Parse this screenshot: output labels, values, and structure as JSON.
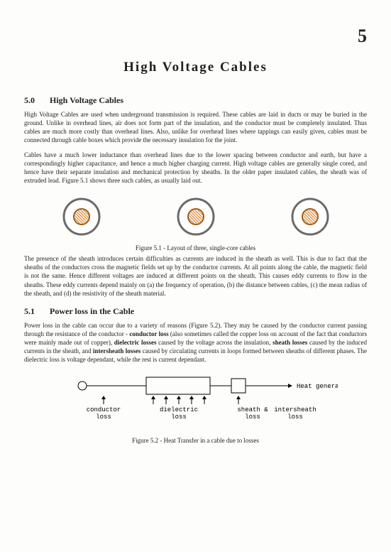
{
  "chapter_number": "5",
  "title": "High  Voltage  Cables",
  "sec0": {
    "num": "5.0",
    "head": "High Voltage Cables"
  },
  "p1": "High Voltage Cables are used when underground transmission is required.  These cables are laid in ducts or may be buried in the ground.  Unlike in overhead lines, air does not form part of the insulation, and the conductor must be completely insulated.  Thus cables are much more costly than overhead lines.  Also, unlike for overhead lines where tappings can easily given, cables must be connected through cable boxes which provide the necessary insulation for the joint.",
  "p2": "Cables have a much lower inductance than overhead lines due to the lower spacing between conductor and earth, but have a correspondingly higher capacitance, and hence a much higher charging current.  High voltage cables are generally single cored, and hence have their separate insulation and mechanical protection by sheaths.  In the older paper insulated cables, the sheath was of extruded lead.  Figure 5.1 shows three such cables, as usually laid out.",
  "fig51_caption": "Figure 5.1  -  Layout of three, single-core cables",
  "p3": "The presence of the sheath introduces certain difficulties as currents are induced in the sheath as well.  This is due to fact that the sheaths of the conductors cross the magnetic fields set up by the conductor currents.  At all points along the cable, the magnetic field is not the same.  Hence different voltages are induced at different points on the sheath.  This causes eddy currents to flow in the sheaths.  These eddy currents depend mainly on (a) the frequency of operation, (b) the distance between cables, (c) the mean radius of the sheath, and (d) the resistivity of the sheath material.",
  "sec1": {
    "num": "5.1",
    "head": "Power loss in the Cable"
  },
  "p4a": "Power loss in the cable can occur due to a variety of reasons (Figure 5.2).  They may be caused by the conductor current passing through the resistance of the conductor - ",
  "p4b": "conductor loss",
  "p4c": " (also sometimes called the copper loss on account of the fact that conductors were mainly made out of copper), ",
  "p4d": "dielectric losses",
  "p4e": " caused by the voltage across the insulation, ",
  "p4f": "sheath losses",
  "p4g": " caused by the induced currents in the sheath,  and ",
  "p4h": "intersheath losses",
  "p4i": " caused by circulating currents in loops formed between sheaths of different phases.  The dielectric loss is voltage dependant, while the rest is current dependant.",
  "fig52": {
    "heat": "Heat generated",
    "conductor": "conductor",
    "loss": "loss",
    "dielectric": "dielectric",
    "sheath": "sheath &",
    "intersheath": "intersheath"
  },
  "fig52_caption": "Figure 5.2  -  Heat Transfer in a cable due to losses",
  "core": {
    "outer_stroke": "#6a6a6a",
    "outer_fill": "#ffffff",
    "inner_stroke": "#a05a1a",
    "hatch": "#d98a3a",
    "r_outer": 25,
    "r_inner": 11
  },
  "mono_font": "Courier New, monospace"
}
